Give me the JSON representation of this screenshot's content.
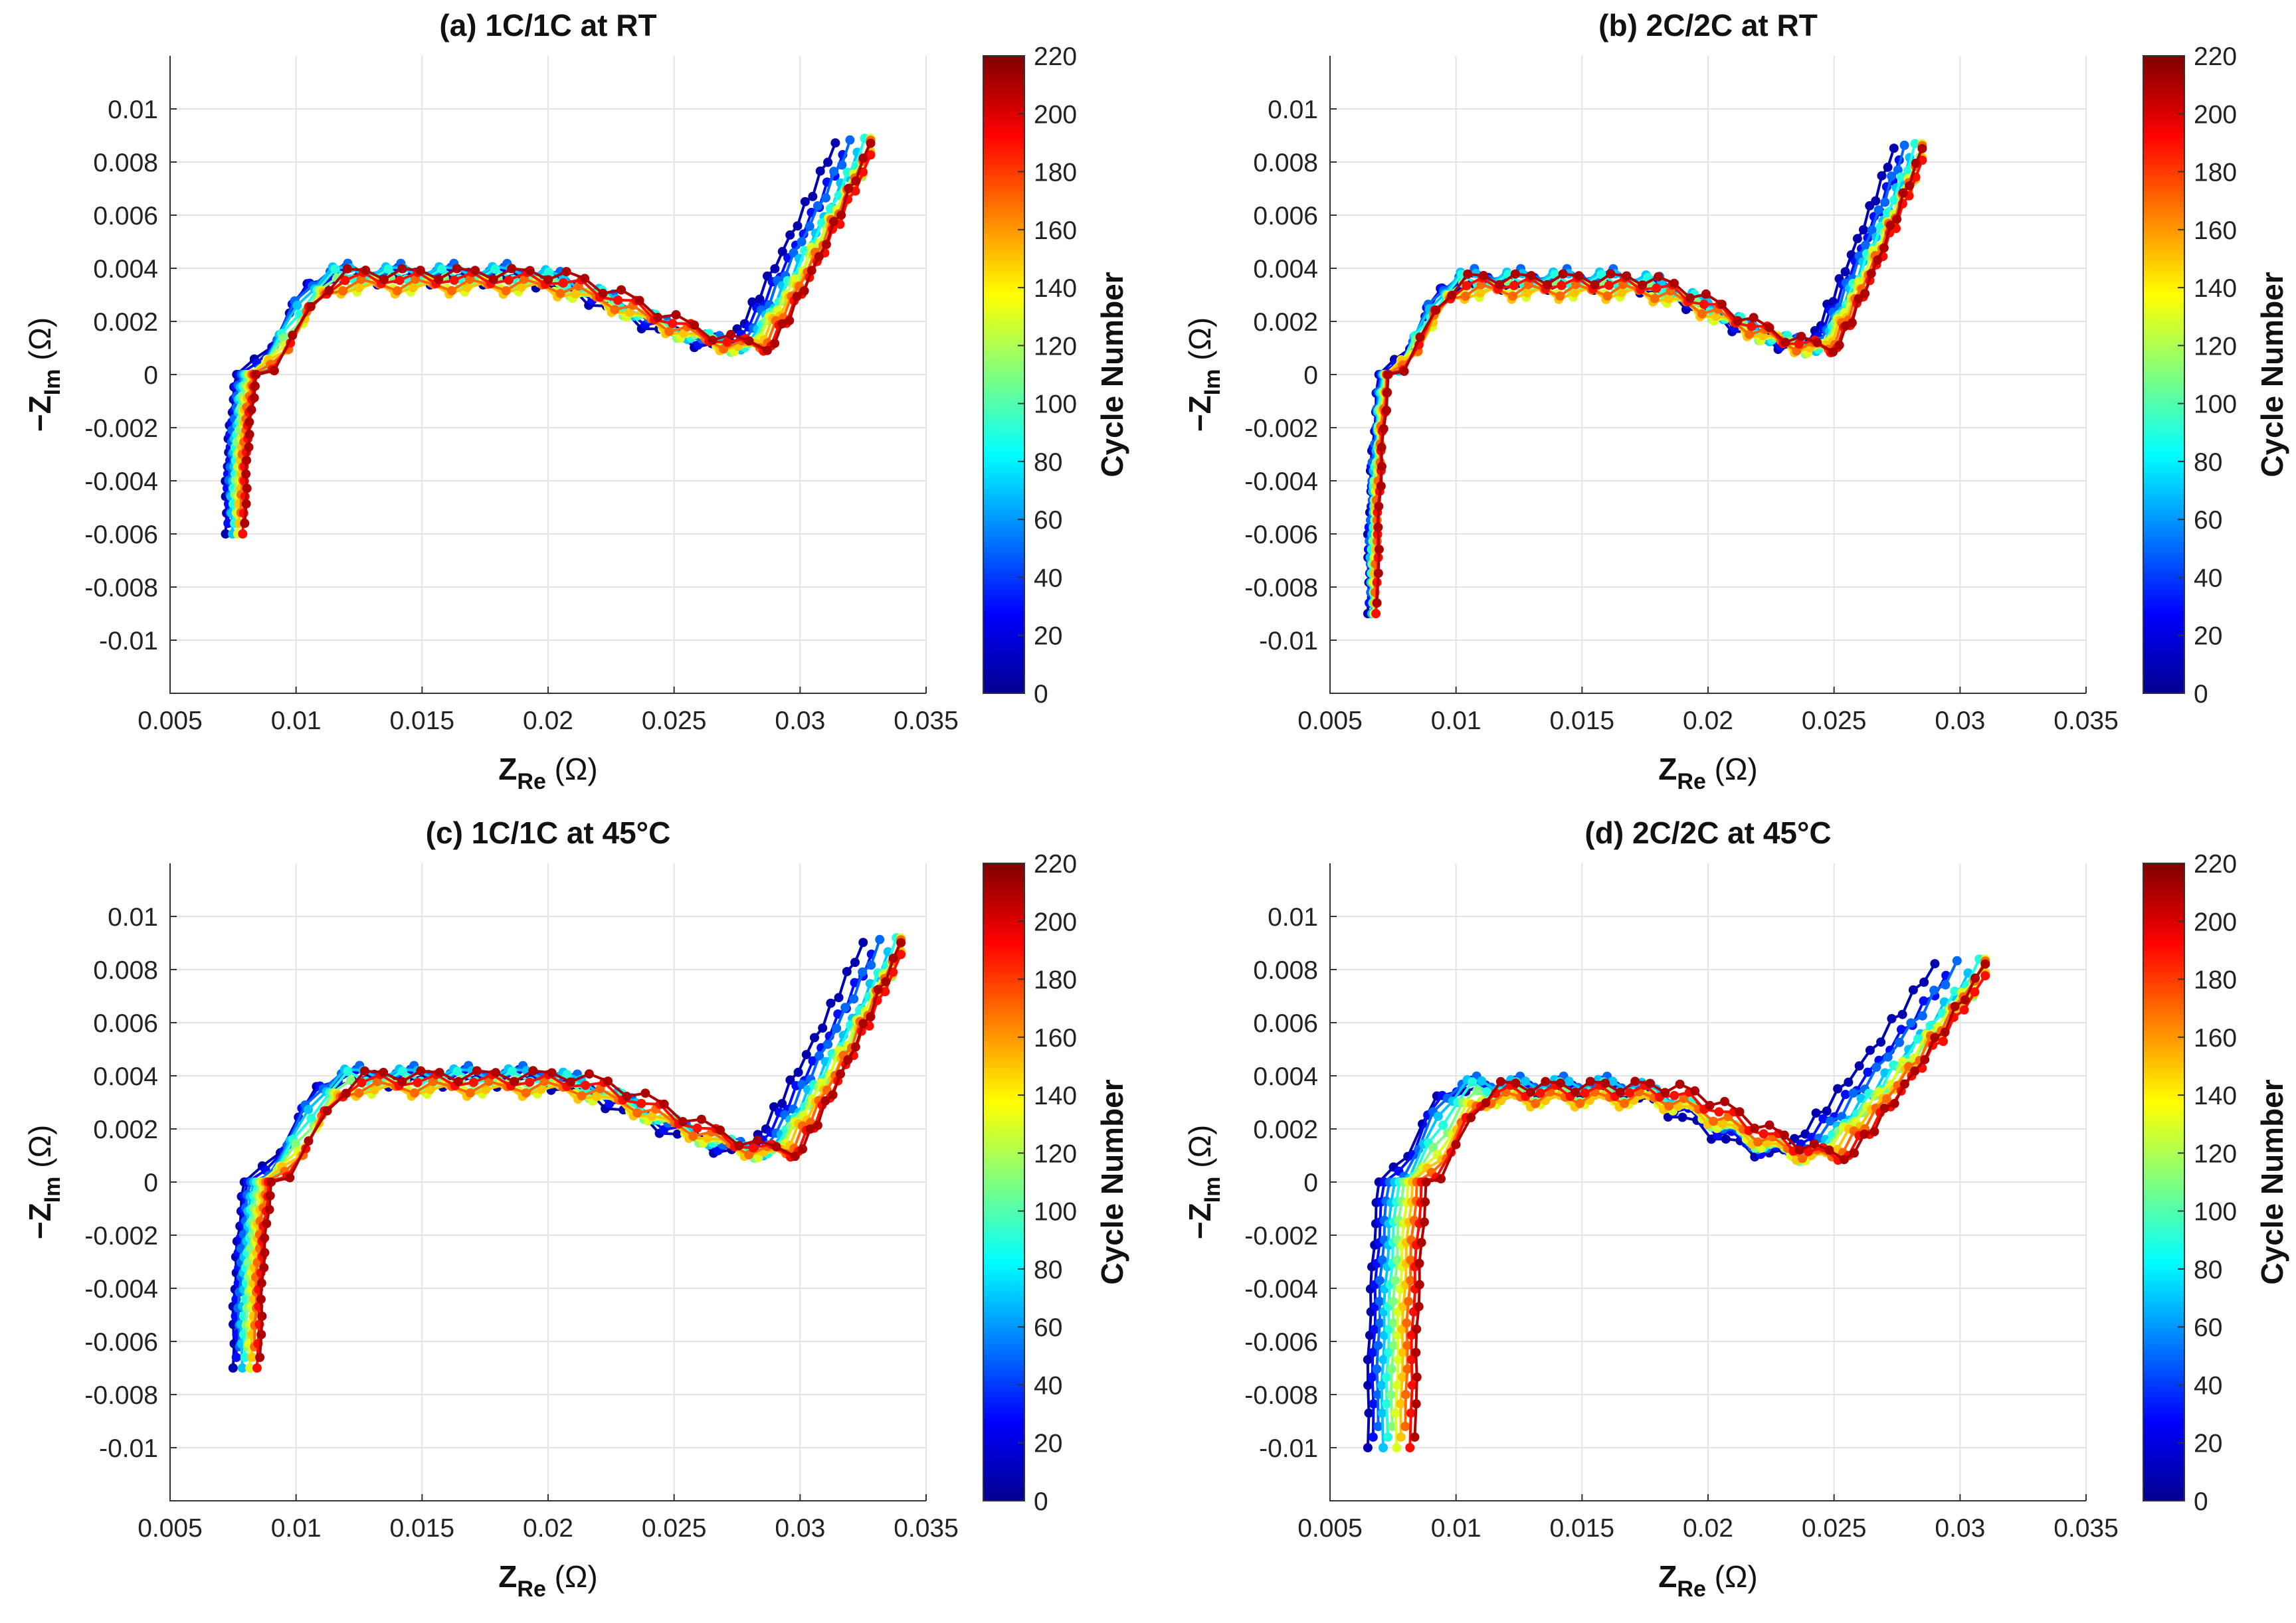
{
  "chart_data": [
    {
      "type": "scatter",
      "title": "(a) 1C/1C at RT",
      "xlabel": {
        "main": "Z",
        "sub": "Re",
        "unit": " (Ω)"
      },
      "ylabel": {
        "main": "−Z",
        "sub": "Im",
        "unit": " (Ω)"
      },
      "xlim": [
        0.005,
        0.035
      ],
      "ylim": [
        -0.012,
        0.012
      ],
      "xticks": [
        "0.005",
        "0.01",
        "0.015",
        "0.02",
        "0.025",
        "0.03",
        "0.035"
      ],
      "yticks": [
        "-0.01",
        "-0.008",
        "-0.006",
        "-0.004",
        "-0.002",
        "0",
        "0.002",
        "0.004",
        "0.006",
        "0.008",
        "0.01"
      ],
      "colorbar": {
        "label": "Cycle Number",
        "range": [
          0,
          220
        ],
        "ticks": [
          "0",
          "20",
          "40",
          "60",
          "80",
          "100",
          "120",
          "140",
          "160",
          "180",
          "200",
          "220"
        ]
      },
      "curve_model": {
        "x_start": 0.0072,
        "x_step": 8e-05,
        "y_min": -0.006,
        "x_min": 0.0272,
        "x_step_max": 0.00025,
        "y_end": 0.0087,
        "x_end": 0.0328,
        "plateau": 0.0036
      },
      "series": [
        {
          "name": "cycle 10",
          "cycle": 10
        },
        {
          "name": "cycle 30",
          "cycle": 30
        },
        {
          "name": "cycle 50",
          "cycle": 50
        },
        {
          "name": "cycle 70",
          "cycle": 70
        },
        {
          "name": "cycle 90",
          "cycle": 90
        },
        {
          "name": "cycle 110",
          "cycle": 110
        },
        {
          "name": "cycle 130",
          "cycle": 130
        },
        {
          "name": "cycle 150",
          "cycle": 150
        },
        {
          "name": "cycle 170",
          "cycle": 170
        },
        {
          "name": "cycle 190",
          "cycle": 190
        },
        {
          "name": "cycle 210",
          "cycle": 210
        }
      ]
    },
    {
      "type": "scatter",
      "title": "(b) 2C/2C at RT",
      "xlabel": {
        "main": "Z",
        "sub": "Re",
        "unit": " (Ω)"
      },
      "ylabel": {
        "main": "−Z",
        "sub": "Im",
        "unit": " (Ω)"
      },
      "xlim": [
        0.005,
        0.035
      ],
      "ylim": [
        -0.012,
        0.012
      ],
      "xticks": [
        "0.005",
        "0.01",
        "0.015",
        "0.02",
        "0.025",
        "0.03",
        "0.035"
      ],
      "yticks": [
        "-0.01",
        "-0.008",
        "-0.006",
        "-0.004",
        "-0.002",
        "0",
        "0.002",
        "0.004",
        "0.006",
        "0.008",
        "0.01"
      ],
      "colorbar": {
        "label": "Cycle Number",
        "range": [
          0,
          220
        ],
        "ticks": [
          "0",
          "20",
          "40",
          "60",
          "80",
          "100",
          "120",
          "140",
          "160",
          "180",
          "200",
          "220"
        ]
      },
      "curve_model": {
        "x_start": 0.0065,
        "x_step": 4e-05,
        "y_min": -0.009,
        "x_min": 0.024,
        "x_step_max": 0.00016,
        "y_end": 0.0085,
        "x_end": 0.0285,
        "plateau": 0.0034
      },
      "series": [
        {
          "name": "cycle 10",
          "cycle": 10
        },
        {
          "name": "cycle 30",
          "cycle": 30
        },
        {
          "name": "cycle 50",
          "cycle": 50
        },
        {
          "name": "cycle 70",
          "cycle": 70
        },
        {
          "name": "cycle 90",
          "cycle": 90
        },
        {
          "name": "cycle 110",
          "cycle": 110
        },
        {
          "name": "cycle 130",
          "cycle": 130
        },
        {
          "name": "cycle 150",
          "cycle": 150
        },
        {
          "name": "cycle 170",
          "cycle": 170
        },
        {
          "name": "cycle 190",
          "cycle": 190
        },
        {
          "name": "cycle 210",
          "cycle": 210
        }
      ]
    },
    {
      "type": "scatter",
      "title": "(c) 1C/1C at 45°C",
      "xlabel": {
        "main": "Z",
        "sub": "Re",
        "unit": " (Ω)"
      },
      "ylabel": {
        "main": "−Z",
        "sub": "Im",
        "unit": " (Ω)"
      },
      "xlim": [
        0.005,
        0.035
      ],
      "ylim": [
        -0.012,
        0.012
      ],
      "xticks": [
        "0.005",
        "0.01",
        "0.015",
        "0.02",
        "0.025",
        "0.03",
        "0.035"
      ],
      "yticks": [
        "-0.01",
        "-0.008",
        "-0.006",
        "-0.004",
        "-0.002",
        "0",
        "0.002",
        "0.004",
        "0.006",
        "0.008",
        "0.01"
      ],
      "colorbar": {
        "label": "Cycle Number",
        "range": [
          0,
          220
        ],
        "ticks": [
          "0",
          "20",
          "40",
          "60",
          "80",
          "100",
          "120",
          "140",
          "160",
          "180",
          "200",
          "220"
        ]
      },
      "curve_model": {
        "x_start": 0.0075,
        "x_step": 0.00011,
        "y_min": -0.007,
        "x_min": 0.028,
        "x_step_max": 0.0003,
        "y_end": 0.009,
        "x_end": 0.034,
        "plateau": 0.0038
      },
      "series": [
        {
          "name": "cycle 10",
          "cycle": 10
        },
        {
          "name": "cycle 30",
          "cycle": 30
        },
        {
          "name": "cycle 50",
          "cycle": 50
        },
        {
          "name": "cycle 70",
          "cycle": 70
        },
        {
          "name": "cycle 90",
          "cycle": 90
        },
        {
          "name": "cycle 110",
          "cycle": 110
        },
        {
          "name": "cycle 130",
          "cycle": 130
        },
        {
          "name": "cycle 150",
          "cycle": 150
        },
        {
          "name": "cycle 170",
          "cycle": 170
        },
        {
          "name": "cycle 190",
          "cycle": 190
        },
        {
          "name": "cycle 210",
          "cycle": 210
        }
      ]
    },
    {
      "type": "scatter",
      "title": "(d) 2C/2C at 45°C",
      "xlabel": {
        "main": "Z",
        "sub": "Re",
        "unit": " (Ω)"
      },
      "ylabel": {
        "main": "−Z",
        "sub": "Im",
        "unit": " (Ω)"
      },
      "xlim": [
        0.005,
        0.035
      ],
      "ylim": [
        -0.012,
        0.012
      ],
      "xticks": [
        "0.005",
        "0.01",
        "0.015",
        "0.02",
        "0.025",
        "0.03",
        "0.035"
      ],
      "yticks": [
        "-0.01",
        "-0.008",
        "-0.006",
        "-0.004",
        "-0.002",
        "0",
        "0.002",
        "0.004",
        "0.006",
        "0.008",
        "0.01"
      ],
      "colorbar": {
        "label": "Cycle Number",
        "range": [
          0,
          220
        ],
        "ticks": [
          "0",
          "20",
          "40",
          "60",
          "80",
          "100",
          "120",
          "140",
          "160",
          "180",
          "200",
          "220"
        ]
      },
      "curve_model": {
        "x_start": 0.0065,
        "x_step": 0.00019,
        "y_min": -0.01,
        "x_min": 0.023,
        "x_step_max": 0.0004,
        "y_end": 0.0082,
        "x_end": 0.031,
        "plateau": 0.0034
      },
      "series": [
        {
          "name": "cycle 10",
          "cycle": 10
        },
        {
          "name": "cycle 30",
          "cycle": 30
        },
        {
          "name": "cycle 50",
          "cycle": 50
        },
        {
          "name": "cycle 70",
          "cycle": 70
        },
        {
          "name": "cycle 90",
          "cycle": 90
        },
        {
          "name": "cycle 110",
          "cycle": 110
        },
        {
          "name": "cycle 130",
          "cycle": 130
        },
        {
          "name": "cycle 150",
          "cycle": 150
        },
        {
          "name": "cycle 170",
          "cycle": 170
        },
        {
          "name": "cycle 190",
          "cycle": 190
        },
        {
          "name": "cycle 210",
          "cycle": 210
        }
      ]
    }
  ]
}
